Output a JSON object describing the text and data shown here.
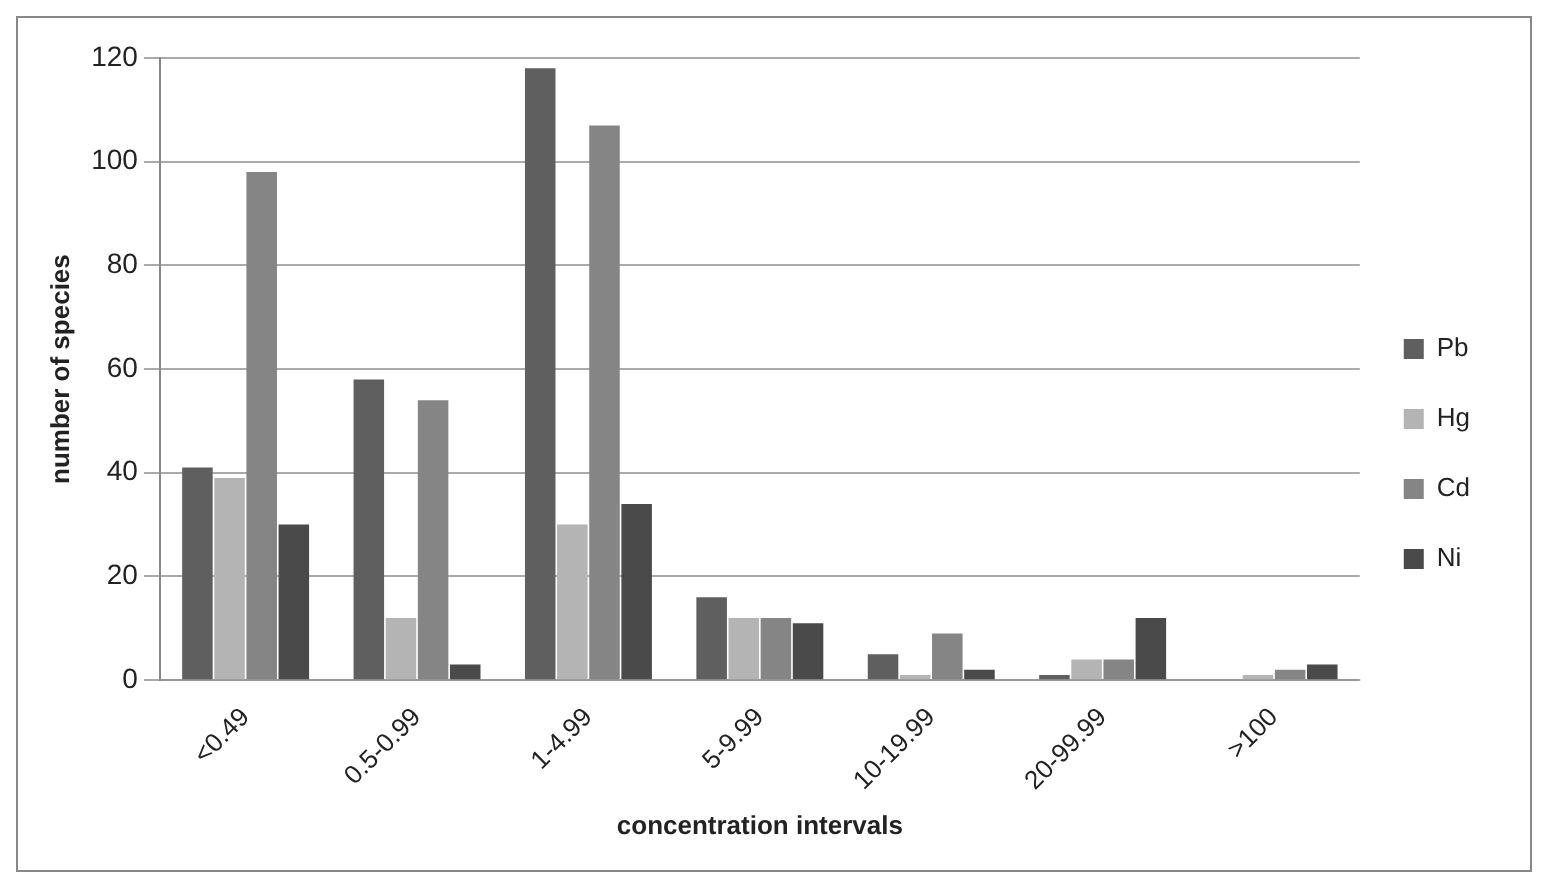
{
  "chart_data": {
    "type": "bar",
    "xlabel": "concentration intervals",
    "ylabel": "number of species",
    "categories": [
      "<0.49",
      "0.5-0.99",
      "1-4.99",
      "5-9.99",
      "10-19.99",
      "20-99.99",
      ">100"
    ],
    "series": [
      {
        "name": "Pb",
        "color": "#5f5f5f",
        "values": [
          41,
          58,
          118,
          16,
          5,
          1,
          0
        ]
      },
      {
        "name": "Hg",
        "color": "#b4b4b4",
        "values": [
          39,
          12,
          30,
          12,
          1,
          4,
          1
        ]
      },
      {
        "name": "Cd",
        "color": "#858585",
        "values": [
          98,
          54,
          107,
          12,
          9,
          4,
          2
        ]
      },
      {
        "name": "Ni",
        "color": "#4a4a4a",
        "values": [
          30,
          3,
          34,
          11,
          2,
          12,
          3
        ]
      }
    ],
    "ylim": [
      0,
      120
    ],
    "yticks": [
      0,
      20,
      40,
      60,
      80,
      100,
      120
    ],
    "grid": "y",
    "legend": "right"
  }
}
